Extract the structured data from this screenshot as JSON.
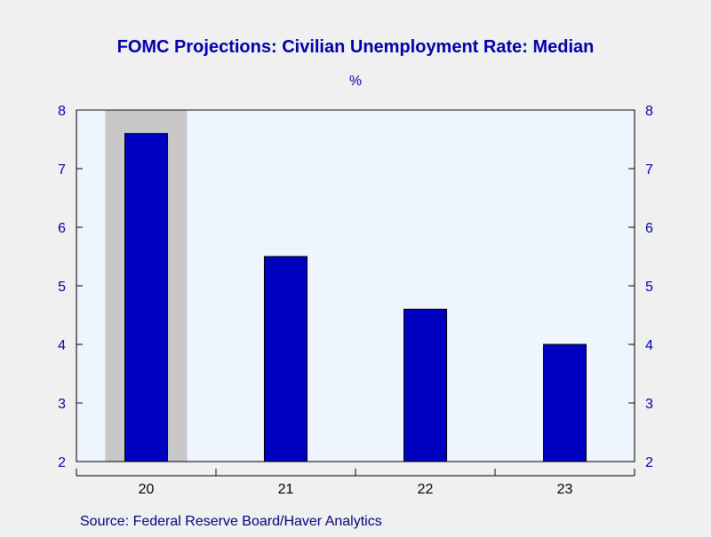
{
  "chart_data": {
    "type": "bar",
    "title": "FOMC Projections: Civilian Unemployment Rate: Median",
    "subtitle": "%",
    "categories": [
      "20",
      "21",
      "22",
      "23"
    ],
    "values": [
      7.6,
      5.5,
      4.6,
      4.0
    ],
    "ylim": [
      2,
      8
    ],
    "yticks": [
      2,
      3,
      4,
      5,
      6,
      7,
      8
    ],
    "left_axis": true,
    "right_axis": true,
    "grid": false,
    "shaded_category": "20",
    "source": "Source:  Federal Reserve Board/Haver Analytics",
    "colors": {
      "page_bg": "#f0f0f0",
      "plot_bg": "#eef5fe",
      "shade": "#c8c8c8",
      "bar": "#0000c0",
      "bar_stroke": "#000000",
      "title_text": "#0000aa",
      "axis_text": "#0000aa",
      "source_text": "#000080",
      "axis_line": "#000000"
    }
  }
}
